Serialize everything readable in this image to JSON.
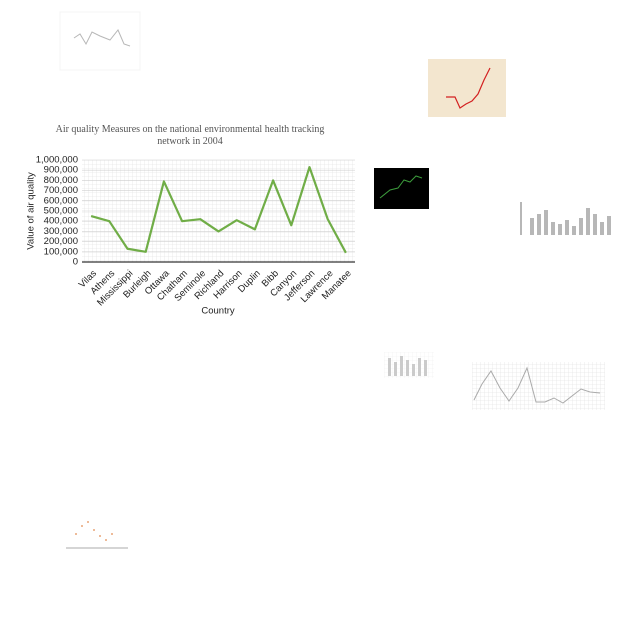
{
  "chart_data": {
    "type": "line",
    "title": "Air quality Measures on the national environmental health tracking network in 2004",
    "x_label": "Country",
    "y_label": "Value of air quality",
    "categories": [
      "Vilas",
      "Athens",
      "Mississippi",
      "Burleigh",
      "Ottawa",
      "Chatham",
      "Seminole",
      "Richland",
      "Harrison",
      "Duplin",
      "Bibb",
      "Canyon",
      "Jefferson",
      "Lawrence",
      "Manatee"
    ],
    "values": [
      450000,
      400000,
      130000,
      100000,
      790000,
      400000,
      420000,
      300000,
      410000,
      320000,
      800000,
      360000,
      930000,
      420000,
      90000
    ],
    "color": "#70ad47",
    "ylim": [
      0,
      1000000
    ],
    "yticks": [
      0,
      {
        "value": 100000,
        "label": "100,000"
      },
      {
        "value": 200000,
        "label": "200,000"
      },
      {
        "value": 300000,
        "label": "300,000"
      },
      {
        "value": 400000,
        "label": "400,000"
      },
      {
        "value": 500000,
        "label": "500,000"
      },
      {
        "value": 600000,
        "label": "600,000"
      },
      {
        "value": 700000,
        "label": "700,000"
      },
      {
        "value": 800000,
        "label": "800,000"
      },
      {
        "value": 900000,
        "label": "900,000"
      },
      {
        "value": 1000000,
        "label": "1,000,000"
      }
    ],
    "grid": true
  }
}
